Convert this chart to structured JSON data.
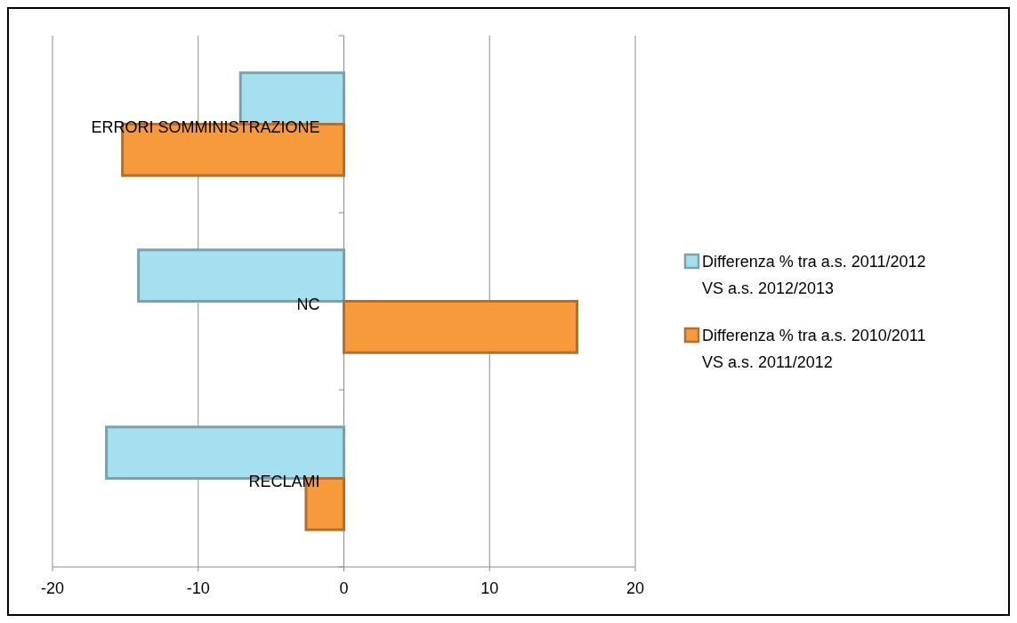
{
  "chart_data": {
    "type": "bar",
    "orientation": "horizontal",
    "categories": [
      "ERRORI SOMMINISTRAZIONE",
      "NC",
      "RECLAMI"
    ],
    "series": [
      {
        "name": "Differenza % tra a.s. 2011/2012 VS a.s. 2012/2013",
        "color": "#a5dff0",
        "values": [
          -7.1,
          -14.1,
          -16.3
        ]
      },
      {
        "name": "Differenza % tra a.s. 2010/2011 VS a.s. 2011/2012",
        "color": "#f79a3c",
        "values": [
          -15.2,
          16.0,
          -2.6
        ]
      }
    ],
    "xlim": [
      -20,
      20
    ],
    "xticks": [
      -20,
      -10,
      0,
      10,
      20
    ],
    "grid": "x",
    "legend": "right"
  }
}
